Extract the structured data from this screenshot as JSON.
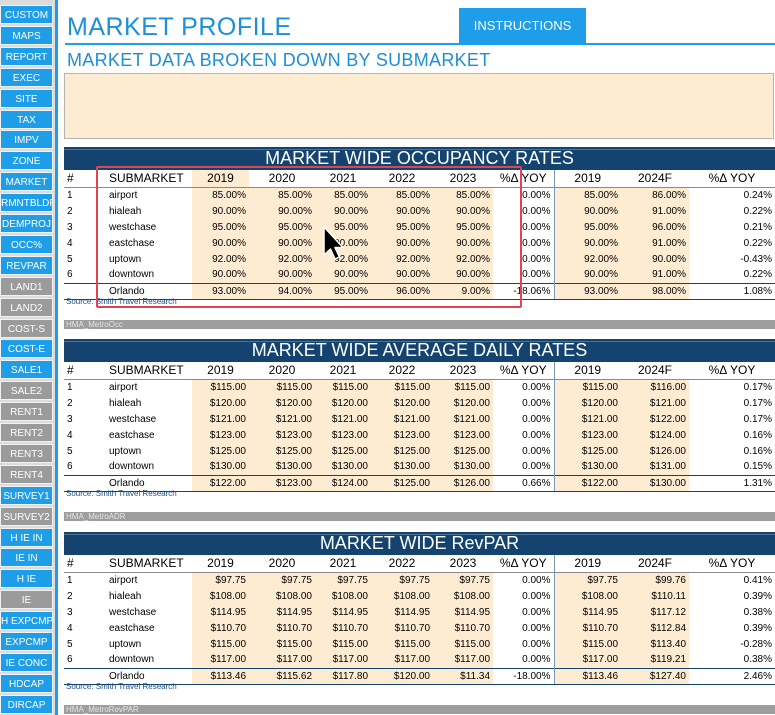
{
  "sidebar": {
    "items": [
      {
        "label": "CUSTOM",
        "style": "blue"
      },
      {
        "label": "MAPS",
        "style": "blue"
      },
      {
        "label": "REPORT",
        "style": "blue"
      },
      {
        "label": "EXEC",
        "style": "blue"
      },
      {
        "label": "SITE",
        "style": "blue"
      },
      {
        "label": "TAX",
        "style": "blue"
      },
      {
        "label": "IMPV",
        "style": "blue"
      },
      {
        "label": "ZONE",
        "style": "blue"
      },
      {
        "label": "MARKET",
        "style": "blue"
      },
      {
        "label": "RMNTBLDR",
        "style": "blue"
      },
      {
        "label": "DEMPROJ",
        "style": "blue"
      },
      {
        "label": "OCC%",
        "style": "blue"
      },
      {
        "label": "REVPAR",
        "style": "blue"
      },
      {
        "label": "LAND1",
        "style": "gray"
      },
      {
        "label": "LAND2",
        "style": "gray"
      },
      {
        "label": "COST-S",
        "style": "gray"
      },
      {
        "label": "COST-E",
        "style": "blue"
      },
      {
        "label": "SALE1",
        "style": "blue"
      },
      {
        "label": "SALE2",
        "style": "gray"
      },
      {
        "label": "RENT1",
        "style": "gray"
      },
      {
        "label": "RENT2",
        "style": "gray"
      },
      {
        "label": "RENT3",
        "style": "gray"
      },
      {
        "label": "RENT4",
        "style": "gray"
      },
      {
        "label": "SURVEY1",
        "style": "blue"
      },
      {
        "label": "SURVEY2",
        "style": "gray"
      },
      {
        "label": "H IE IN",
        "style": "blue"
      },
      {
        "label": "IE IN",
        "style": "blue"
      },
      {
        "label": "H IE",
        "style": "blue"
      },
      {
        "label": "IE",
        "style": "gray"
      },
      {
        "label": "H EXPCMP",
        "style": "blue"
      },
      {
        "label": "EXPCMP",
        "style": "blue"
      },
      {
        "label": "IE CONC",
        "style": "blue"
      },
      {
        "label": "HDCAP",
        "style": "blue"
      },
      {
        "label": "DIRCAP",
        "style": "blue"
      }
    ]
  },
  "header": {
    "title": "MARKET PROFILE",
    "instructions_label": "INSTRUCTIONS",
    "subtitle": "MARKET DATA BROKEN DOWN BY SUBMARKET"
  },
  "colors": {
    "accent": "#1e9ee8",
    "title_bar": "#13436e",
    "shade": "#fdebd2",
    "highlight": "#e0444e"
  },
  "columns": [
    "#",
    "SUBMARKET",
    "2019",
    "2020",
    "2021",
    "2022",
    "2023",
    "%Δ YOY",
    "2019",
    "2024F",
    "%Δ YOY"
  ],
  "tables": [
    {
      "title": "MARKET WIDE OCCUPANCY RATES",
      "source": "Source: Smith Travel Research",
      "tab": "HMA_MetroOcc",
      "rows": [
        [
          "1",
          "airport",
          "85.00%",
          "85.00%",
          "85.00%",
          "85.00%",
          "85.00%",
          "0.00%",
          "85.00%",
          "86.00%",
          "0.24%"
        ],
        [
          "2",
          "hialeah",
          "90.00%",
          "90.00%",
          "90.00%",
          "90.00%",
          "90.00%",
          "0.00%",
          "90.00%",
          "91.00%",
          "0.22%"
        ],
        [
          "3",
          "westchase",
          "95.00%",
          "95.00%",
          "95.00%",
          "95.00%",
          "95.00%",
          "0.00%",
          "95.00%",
          "96.00%",
          "0.21%"
        ],
        [
          "4",
          "eastchase",
          "90.00%",
          "90.00%",
          "90.00%",
          "90.00%",
          "90.00%",
          "0.00%",
          "90.00%",
          "91.00%",
          "0.22%"
        ],
        [
          "5",
          "uptown",
          "92.00%",
          "92.00%",
          "92.00%",
          "92.00%",
          "92.00%",
          "0.00%",
          "92.00%",
          "90.00%",
          "-0.43%"
        ],
        [
          "6",
          "downtown",
          "90.00%",
          "90.00%",
          "90.00%",
          "90.00%",
          "90.00%",
          "0.00%",
          "90.00%",
          "91.00%",
          "0.22%"
        ]
      ],
      "total": [
        "",
        "Orlando",
        "93.00%",
        "94.00%",
        "95.00%",
        "96.00%",
        "9.00%",
        "-18.06%",
        "93.00%",
        "98.00%",
        "1.08%"
      ]
    },
    {
      "title": "MARKET WIDE AVERAGE DAILY RATES",
      "source": "Source: Smith Travel Research",
      "tab": "HMA_MetroADR",
      "rows": [
        [
          "1",
          "airport",
          "$115.00",
          "$115.00",
          "$115.00",
          "$115.00",
          "$115.00",
          "0.00%",
          "$115.00",
          "$116.00",
          "0.17%"
        ],
        [
          "2",
          "hialeah",
          "$120.00",
          "$120.00",
          "$120.00",
          "$120.00",
          "$120.00",
          "0.00%",
          "$120.00",
          "$121.00",
          "0.17%"
        ],
        [
          "3",
          "westchase",
          "$121.00",
          "$121.00",
          "$121.00",
          "$121.00",
          "$121.00",
          "0.00%",
          "$121.00",
          "$122.00",
          "0.17%"
        ],
        [
          "4",
          "eastchase",
          "$123.00",
          "$123.00",
          "$123.00",
          "$123.00",
          "$123.00",
          "0.00%",
          "$123.00",
          "$124.00",
          "0.16%"
        ],
        [
          "5",
          "uptown",
          "$125.00",
          "$125.00",
          "$125.00",
          "$125.00",
          "$125.00",
          "0.00%",
          "$125.00",
          "$126.00",
          "0.16%"
        ],
        [
          "6",
          "downtown",
          "$130.00",
          "$130.00",
          "$130.00",
          "$130.00",
          "$130.00",
          "0.00%",
          "$130.00",
          "$131.00",
          "0.15%"
        ]
      ],
      "total": [
        "",
        "Orlando",
        "$122.00",
        "$123.00",
        "$124.00",
        "$125.00",
        "$126.00",
        "0.66%",
        "$122.00",
        "$130.00",
        "1.31%"
      ]
    },
    {
      "title": "MARKET WIDE RevPAR",
      "source": "Source: Smith Travel Research",
      "tab": "HMA_MetroRevPAR",
      "rows": [
        [
          "1",
          "airport",
          "$97.75",
          "$97.75",
          "$97.75",
          "$97.75",
          "$97.75",
          "0.00%",
          "$97.75",
          "$99.76",
          "0.41%"
        ],
        [
          "2",
          "hialeah",
          "$108.00",
          "$108.00",
          "$108.00",
          "$108.00",
          "$108.00",
          "0.00%",
          "$108.00",
          "$110.11",
          "0.39%"
        ],
        [
          "3",
          "westchase",
          "$114.95",
          "$114.95",
          "$114.95",
          "$114.95",
          "$114.95",
          "0.00%",
          "$114.95",
          "$117.12",
          "0.38%"
        ],
        [
          "4",
          "eastchase",
          "$110.70",
          "$110.70",
          "$110.70",
          "$110.70",
          "$110.70",
          "0.00%",
          "$110.70",
          "$112.84",
          "0.39%"
        ],
        [
          "5",
          "uptown",
          "$115.00",
          "$115.00",
          "$115.00",
          "$115.00",
          "$115.00",
          "0.00%",
          "$115.00",
          "$113.40",
          "-0.28%"
        ],
        [
          "6",
          "downtown",
          "$117.00",
          "$117.00",
          "$117.00",
          "$117.00",
          "$117.00",
          "0.00%",
          "$117.00",
          "$119.21",
          "0.38%"
        ]
      ],
      "total": [
        "",
        "Orlando",
        "$113.46",
        "$115.62",
        "$117.80",
        "$120.00",
        "$11.34",
        "-18.00%",
        "$113.46",
        "$127.40",
        "2.46%"
      ]
    }
  ]
}
